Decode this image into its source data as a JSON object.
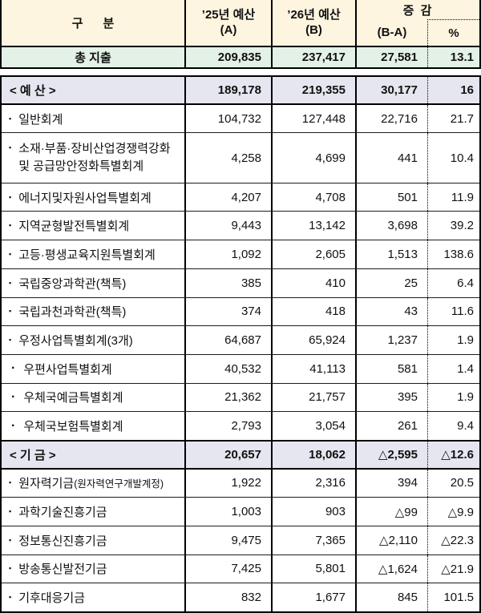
{
  "colors": {
    "header_bg": "#FDF5DF",
    "total_bg": "#E3F1E6",
    "section_bg": "#E6E6F0",
    "border": "#000000",
    "text": "#111111"
  },
  "bullets": {
    "item": "▪",
    "subitem": "·"
  },
  "table": {
    "header": {
      "category": "구      분",
      "y25_line1": "’25년 예산",
      "y25_line2": "(A)",
      "y26_line1": "’26년 예산",
      "y26_line2": "(B)",
      "change": "증 감",
      "change_abs": "(B-A)",
      "change_pct": "%"
    },
    "total_row": {
      "label": "총 지출",
      "a": "209,835",
      "b": "237,417",
      "diff": "27,581",
      "pct": "13.1"
    },
    "rows": [
      {
        "type": "section",
        "label": "< 예 산 >",
        "a": "189,178",
        "b": "219,355",
        "diff": "30,177",
        "pct": "16"
      },
      {
        "type": "item",
        "label": "일반회계",
        "a": "104,732",
        "b": "127,448",
        "diff": "22,716",
        "pct": "21.7"
      },
      {
        "type": "item",
        "label": "소재·부품·장비산업경쟁력강화",
        "label2": "및 공급망안정화특별회계",
        "tall": true,
        "a": "4,258",
        "b": "4,699",
        "diff": "441",
        "pct": "10.4"
      },
      {
        "type": "item",
        "label": "에너지및자원사업특별회계",
        "a": "4,207",
        "b": "4,708",
        "diff": "501",
        "pct": "11.9"
      },
      {
        "type": "item",
        "label": "지역균형발전특별회계",
        "a": "9,443",
        "b": "13,142",
        "diff": "3,698",
        "pct": "39.2"
      },
      {
        "type": "item",
        "label": "고등·평생교육지원특별회계",
        "a": "1,092",
        "b": "2,605",
        "diff": "1,513",
        "pct": "138.6"
      },
      {
        "type": "item",
        "label": "국립중앙과학관(책특)",
        "a": "385",
        "b": "410",
        "diff": "25",
        "pct": "6.4"
      },
      {
        "type": "item",
        "label": "국립과천과학관(책특)",
        "a": "374",
        "b": "418",
        "diff": "43",
        "pct": "11.6"
      },
      {
        "type": "item",
        "label": "우정사업특별회계(3개)",
        "a": "64,687",
        "b": "65,924",
        "diff": "1,237",
        "pct": "1.9"
      },
      {
        "type": "subitem",
        "label": "우편사업특별회계",
        "a": "40,532",
        "b": "41,113",
        "diff": "581",
        "pct": "1.4"
      },
      {
        "type": "subitem",
        "label": "우체국예금특별회계",
        "a": "21,362",
        "b": "21,757",
        "diff": "395",
        "pct": "1.9"
      },
      {
        "type": "subitem",
        "label": "우체국보험특별회계",
        "a": "2,793",
        "b": "3,054",
        "diff": "261",
        "pct": "9.4"
      },
      {
        "type": "section",
        "label": "< 기 금 >",
        "a": "20,657",
        "b": "18,062",
        "diff": "△2,595",
        "pct": "△12.6"
      },
      {
        "type": "item",
        "label": "원자력기금",
        "label_small": "(원자력연구개발계정)",
        "a": "1,922",
        "b": "2,316",
        "diff": "394",
        "pct": "20.5"
      },
      {
        "type": "item",
        "label": "과학기술진흥기금",
        "a": "1,003",
        "b": "903",
        "diff": "△99",
        "pct": "△9.9"
      },
      {
        "type": "item",
        "label": "정보통신진흥기금",
        "a": "9,475",
        "b": "7,365",
        "diff": "△2,110",
        "pct": "△22.3"
      },
      {
        "type": "item",
        "label": "방송통신발전기금",
        "a": "7,425",
        "b": "5,801",
        "diff": "△1,624",
        "pct": "△21.9"
      },
      {
        "type": "item",
        "label": "기후대응기금",
        "a": "832",
        "b": "1,677",
        "diff": "845",
        "pct": "101.5"
      }
    ]
  }
}
